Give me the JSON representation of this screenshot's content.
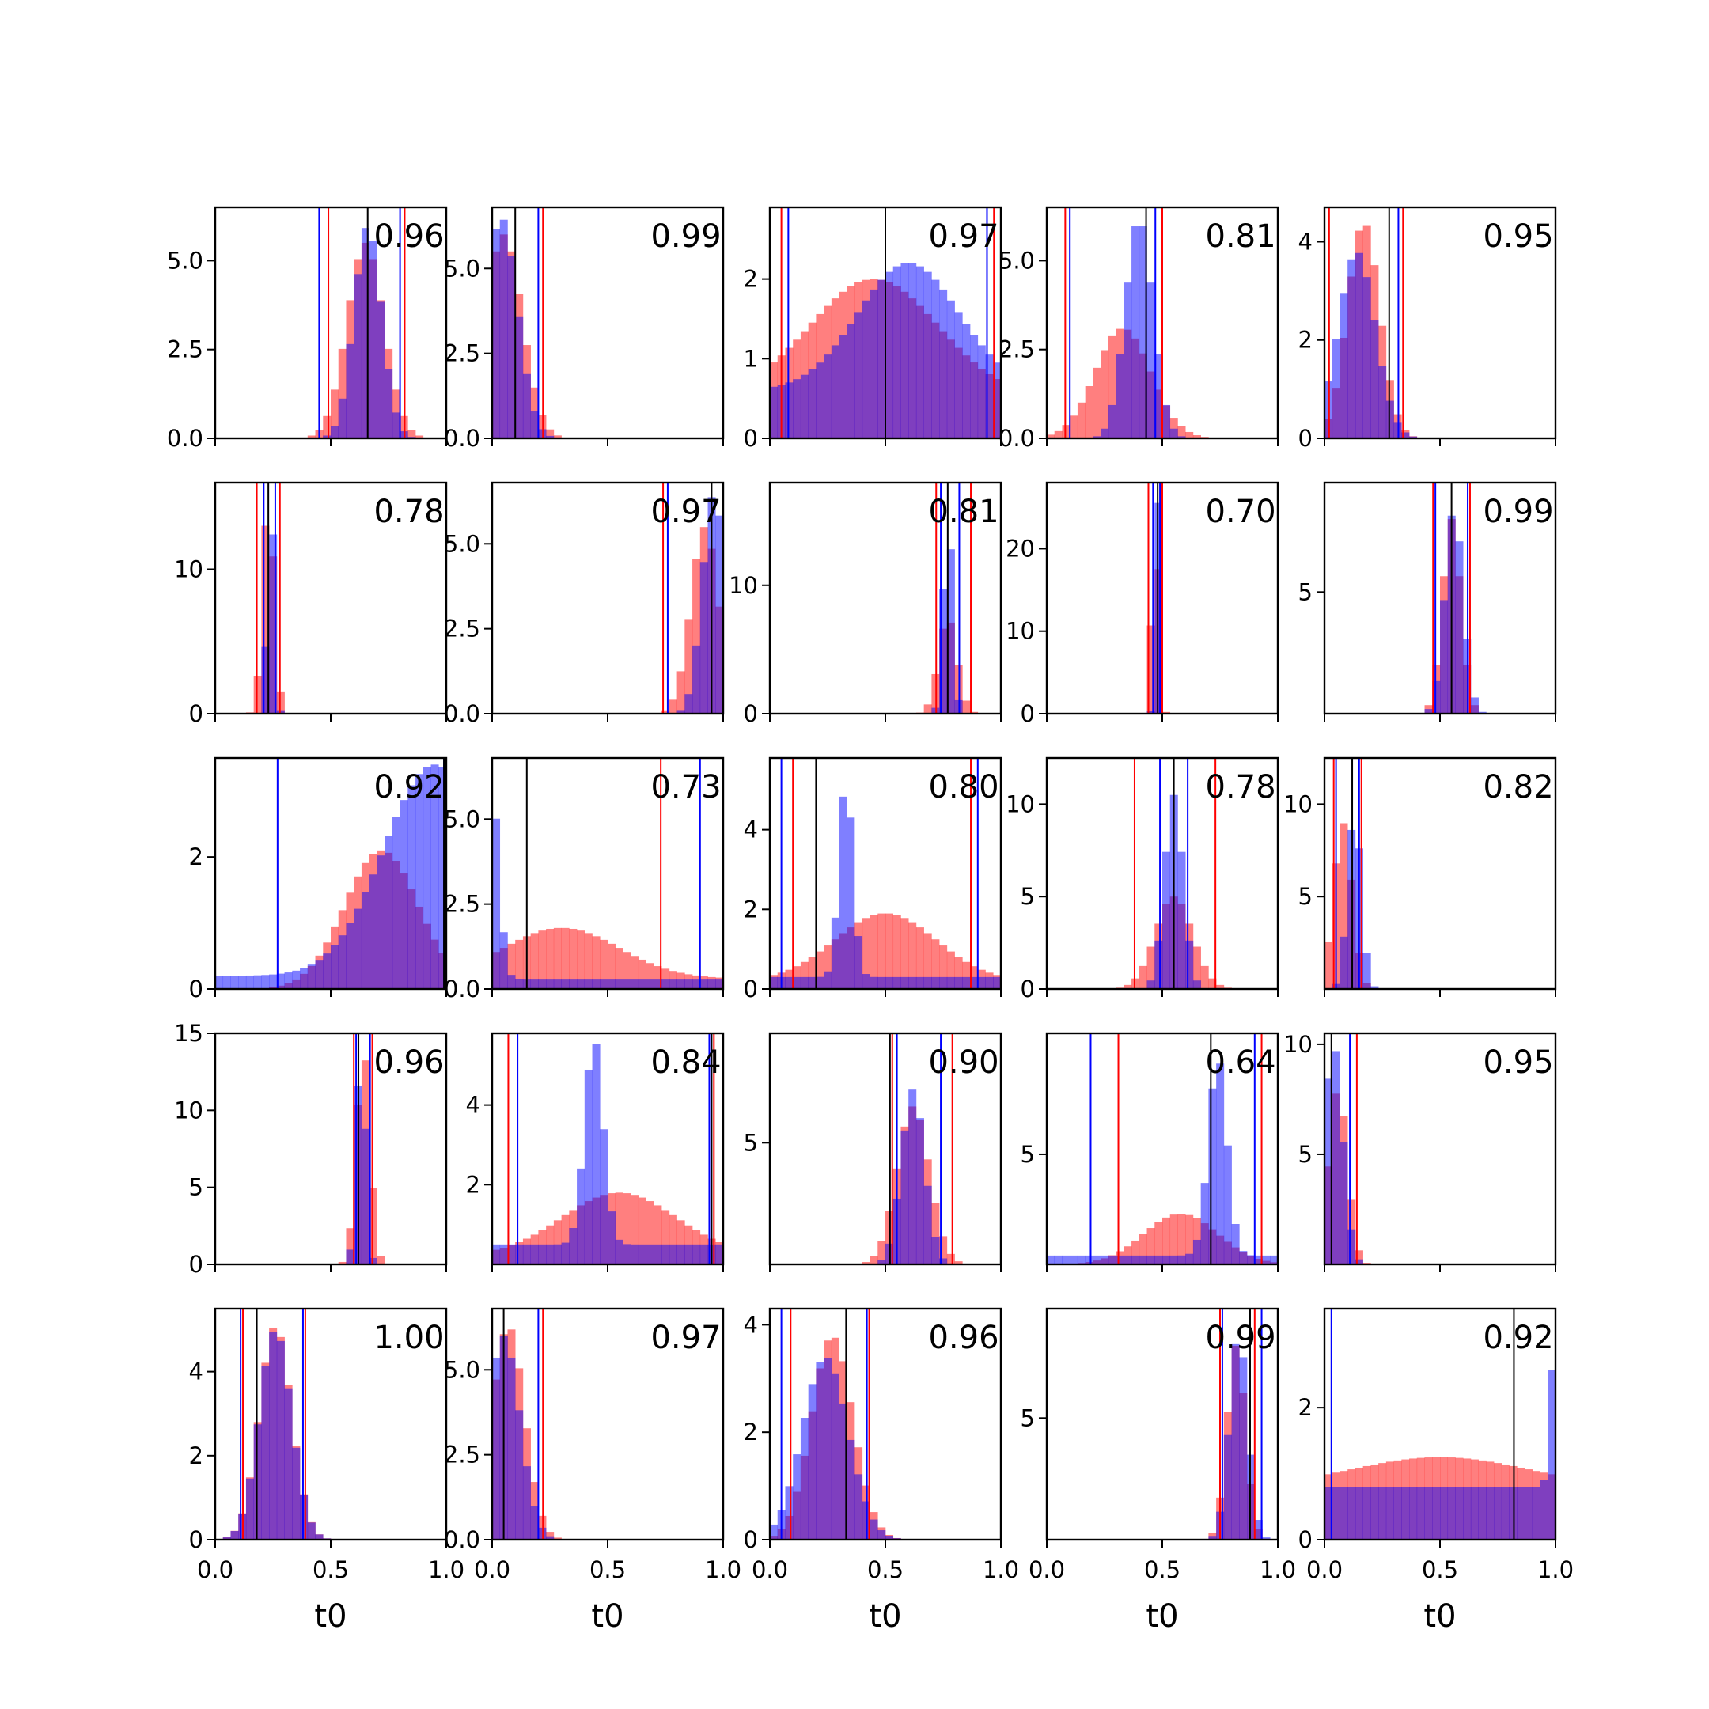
{
  "chart_data": {
    "type": "histogram-grid",
    "rows": 5,
    "cols": 5,
    "xlabel": "t0",
    "xlim": [
      0,
      1
    ],
    "x_ticks": [
      "0.0",
      "0.5",
      "1.0"
    ],
    "series_colors": {
      "red": "#ff0000",
      "blue": "#0000ff",
      "truth": "#000000"
    },
    "panels": [
      {
        "label": "0.96",
        "ymax": 6.5,
        "yticks": [
          "0.0",
          "2.5",
          "5.0"
        ],
        "ytick_vals": [
          0,
          2.5,
          5
        ],
        "red": {
          "mu": 0.65,
          "sd": 0.08,
          "peak": 5.5,
          "lines": [
            0.49,
            0.82
          ]
        },
        "blue": {
          "mu": 0.66,
          "sd": 0.06,
          "peak": 6.0,
          "lines": [
            0.45,
            0.8
          ],
          "uniform": 0.05
        },
        "truth": 0.66
      },
      {
        "label": "0.99",
        "ymax": 6.8,
        "yticks": [
          "0.0",
          "2.5",
          "5.0"
        ],
        "ytick_vals": [
          0,
          2.5,
          5
        ],
        "red": {
          "mu": 0.05,
          "sd": 0.08,
          "peak": 6.0,
          "lines": [
            0.0,
            0.22
          ]
        },
        "blue": {
          "mu": 0.04,
          "sd": 0.07,
          "peak": 6.5,
          "lines": [
            0.0,
            0.2
          ]
        },
        "truth": 0.1
      },
      {
        "label": "0.97",
        "ymax": 2.9,
        "yticks": [
          "0",
          "1",
          "2"
        ],
        "ytick_vals": [
          0,
          1,
          2
        ],
        "red": {
          "mu": 0.45,
          "sd": 0.28,
          "peak": 1.5,
          "base": 0.5,
          "lines": [
            0.05,
            0.97
          ]
        },
        "blue": {
          "mu": 0.6,
          "sd": 0.22,
          "peak": 1.6,
          "base": 0.6,
          "lines": [
            0.08,
            0.94
          ]
        },
        "truth": 0.5
      },
      {
        "label": "0.81",
        "ymax": 6.5,
        "yticks": [
          "0.0",
          "2.5",
          "5.0"
        ],
        "ytick_vals": [
          0,
          2.5,
          5
        ],
        "red": {
          "mu": 0.33,
          "sd": 0.12,
          "peak": 3.1,
          "lines": [
            0.08,
            0.5
          ]
        },
        "blue": {
          "mu": 0.4,
          "sd": 0.06,
          "peak": 6.2,
          "lines": [
            0.1,
            0.47
          ],
          "uniform": 0.15
        },
        "truth": 0.43
      },
      {
        "label": "0.95",
        "ymax": 4.7,
        "yticks": [
          "0",
          "2",
          "4"
        ],
        "ytick_vals": [
          0,
          2,
          4
        ],
        "red": {
          "mu": 0.17,
          "sd": 0.07,
          "peak": 4.4,
          "lines": [
            0.02,
            0.34
          ]
        },
        "blue": {
          "mu": 0.14,
          "sd": 0.08,
          "peak": 3.8,
          "lines": [
            0.0,
            0.32
          ]
        },
        "truth": 0.28
      },
      {
        "label": "0.78",
        "ymax": 16,
        "yticks": [
          "0",
          "10"
        ],
        "ytick_vals": [
          0,
          10
        ],
        "red": {
          "mu": 0.23,
          "sd": 0.025,
          "peak": 15.0,
          "lines": [
            0.18,
            0.28
          ]
        },
        "blue": {
          "mu": 0.24,
          "sd": 0.015,
          "peak": 15.5,
          "lines": [
            0.21,
            0.26
          ]
        },
        "truth": 0.23
      },
      {
        "label": "0.97",
        "ymax": 6.8,
        "yticks": [
          "0.0",
          "2.5",
          "5.0"
        ],
        "ytick_vals": [
          0,
          2.5,
          5
        ],
        "red": {
          "mu": 0.92,
          "sd": 0.06,
          "peak": 5.5,
          "lines": [
            0.74,
            1.0
          ]
        },
        "blue": {
          "mu": 0.96,
          "sd": 0.05,
          "peak": 6.5,
          "lines": [
            0.76,
            1.0
          ]
        },
        "truth": 0.95
      },
      {
        "label": "0.81",
        "ymax": 18,
        "yticks": [
          "0",
          "10"
        ],
        "ytick_vals": [
          0,
          10
        ],
        "red": {
          "mu": 0.77,
          "sd": 0.04,
          "peak": 7.5,
          "lines": [
            0.72,
            0.87
          ]
        },
        "blue": {
          "mu": 0.77,
          "sd": 0.02,
          "peak": 16.0,
          "lines": [
            0.74,
            0.82
          ]
        },
        "truth": 0.77
      },
      {
        "label": "0.70",
        "ymax": 28,
        "yticks": [
          "0",
          "10",
          "20"
        ],
        "ytick_vals": [
          0,
          10,
          20
        ],
        "red": {
          "mu": 0.47,
          "sd": 0.015,
          "peak": 26.0,
          "lines": [
            0.44,
            0.5
          ]
        },
        "blue": {
          "mu": 0.48,
          "sd": 0.01,
          "peak": 27.0,
          "lines": [
            0.46,
            0.49
          ]
        },
        "truth": 0.48
      },
      {
        "label": "0.99",
        "ymax": 9.5,
        "yticks": [
          "5"
        ],
        "ytick_vals": [
          5
        ],
        "red": {
          "mu": 0.55,
          "sd": 0.04,
          "peak": 8.0,
          "lines": [
            0.47,
            0.63
          ]
        },
        "blue": {
          "mu": 0.56,
          "sd": 0.04,
          "peak": 8.4,
          "lines": [
            0.48,
            0.62
          ]
        },
        "truth": 0.55
      },
      {
        "label": "0.92",
        "ymax": 3.5,
        "yticks": [
          "0",
          "2"
        ],
        "ytick_vals": [
          0,
          2
        ],
        "red": {
          "mu": 0.72,
          "sd": 0.16,
          "peak": 2.1,
          "lines": [
            0.0,
            1.0
          ]
        },
        "blue": {
          "mu": 0.95,
          "sd": 0.22,
          "peak": 3.2,
          "base": 0.2,
          "lines": [
            0.27,
            0.99
          ]
        },
        "truth": 0.99
      },
      {
        "label": "0.73",
        "ymax": 6.8,
        "yticks": [
          "0.0",
          "2.5",
          "5.0"
        ],
        "ytick_vals": [
          0,
          2.5,
          5
        ],
        "red": {
          "mu": 0.3,
          "sd": 0.25,
          "peak": 1.5,
          "base": 0.3,
          "lines": [
            0.0,
            0.73
          ]
        },
        "blue": {
          "mu": 0.0,
          "sd": 0.03,
          "peak": 5.5,
          "base": 0.3,
          "lines": [
            0.0,
            0.9
          ]
        },
        "truth": 0.15
      },
      {
        "label": "0.80",
        "ymax": 5.8,
        "yticks": [
          "0",
          "2",
          "4"
        ],
        "ytick_vals": [
          0,
          2,
          4
        ],
        "red": {
          "mu": 0.5,
          "sd": 0.22,
          "peak": 1.7,
          "base": 0.2,
          "lines": [
            0.1,
            0.87
          ]
        },
        "blue": {
          "mu": 0.33,
          "sd": 0.03,
          "peak": 5.0,
          "base": 0.3,
          "lines": [
            0.05,
            0.9
          ]
        },
        "truth": 0.2
      },
      {
        "label": "0.78",
        "ymax": 12.5,
        "yticks": [
          "0",
          "5",
          "10"
        ],
        "ytick_vals": [
          0,
          5,
          10
        ],
        "red": {
          "mu": 0.55,
          "sd": 0.08,
          "peak": 5.0,
          "lines": [
            0.38,
            0.73
          ]
        },
        "blue": {
          "mu": 0.55,
          "sd": 0.04,
          "peak": 10.5,
          "lines": [
            0.49,
            0.61
          ]
        },
        "truth": 0.55
      },
      {
        "label": "0.82",
        "ymax": 12.5,
        "yticks": [
          "5",
          "10"
        ],
        "ytick_vals": [
          5,
          10
        ],
        "red": {
          "mu": 0.08,
          "sd": 0.04,
          "peak": 9.0,
          "lines": [
            0.04,
            0.16
          ]
        },
        "blue": {
          "mu": 0.13,
          "sd": 0.03,
          "peak": 9.5,
          "lines": [
            0.05,
            0.15
          ]
        },
        "truth": 0.12
      },
      {
        "label": "0.96",
        "ymax": 15,
        "yticks": [
          "0",
          "5",
          "10",
          "15"
        ],
        "ytick_vals": [
          0,
          5,
          10,
          15
        ],
        "red": {
          "mu": 0.64,
          "sd": 0.03,
          "peak": 14.0,
          "lines": [
            0.6,
            0.68
          ]
        },
        "blue": {
          "mu": 0.63,
          "sd": 0.02,
          "peak": 14.5,
          "lines": [
            0.61,
            0.67
          ]
        },
        "truth": 0.62
      },
      {
        "label": "0.84",
        "ymax": 5.8,
        "yticks": [
          "2",
          "4"
        ],
        "ytick_vals": [
          2,
          4
        ],
        "red": {
          "mu": 0.55,
          "sd": 0.25,
          "peak": 1.6,
          "base": 0.2,
          "lines": [
            0.07,
            0.96
          ]
        },
        "blue": {
          "mu": 0.44,
          "sd": 0.04,
          "peak": 5.2,
          "base": 0.5,
          "lines": [
            0.11,
            0.94
          ]
        },
        "truth": 0.95
      },
      {
        "label": "0.90",
        "ymax": 9.5,
        "yticks": [
          "5"
        ],
        "ytick_vals": [
          5
        ],
        "red": {
          "mu": 0.62,
          "sd": 0.07,
          "peak": 6.5,
          "lines": [
            0.53,
            0.79
          ]
        },
        "blue": {
          "mu": 0.62,
          "sd": 0.05,
          "peak": 7.2,
          "lines": [
            0.55,
            0.74
          ]
        },
        "truth": 0.52
      },
      {
        "label": "0.64",
        "ymax": 10.5,
        "yticks": [
          "5"
        ],
        "ytick_vals": [
          5
        ],
        "red": {
          "mu": 0.58,
          "sd": 0.16,
          "peak": 2.3,
          "lines": [
            0.31,
            0.93
          ]
        },
        "blue": {
          "mu": 0.74,
          "sd": 0.04,
          "peak": 9.0,
          "base": 0.4,
          "lines": [
            0.19,
            0.9
          ]
        },
        "truth": 0.71
      },
      {
        "label": "0.95",
        "ymax": 10.5,
        "yticks": [
          "5",
          "10"
        ],
        "ytick_vals": [
          5,
          10
        ],
        "red": {
          "mu": 0.06,
          "sd": 0.04,
          "peak": 8.0,
          "lines": [
            0.0,
            0.14
          ]
        },
        "blue": {
          "mu": 0.04,
          "sd": 0.04,
          "peak": 10.0,
          "lines": [
            0.0,
            0.11
          ]
        },
        "truth": 0.03
      },
      {
        "label": "1.00",
        "ymax": 5.5,
        "yticks": [
          "0",
          "2",
          "4"
        ],
        "ytick_vals": [
          0,
          2,
          4
        ],
        "red": {
          "mu": 0.26,
          "sd": 0.07,
          "peak": 5.1,
          "lines": [
            0.12,
            0.39
          ]
        },
        "blue": {
          "mu": 0.26,
          "sd": 0.07,
          "peak": 5.0,
          "lines": [
            0.11,
            0.38
          ]
        },
        "truth": 0.18
      },
      {
        "label": "0.97",
        "ymax": 6.8,
        "yticks": [
          "0.0",
          "2.5",
          "5.0"
        ],
        "ytick_vals": [
          0,
          2.5,
          5
        ],
        "red": {
          "mu": 0.07,
          "sd": 0.07,
          "peak": 6.3,
          "lines": [
            0.0,
            0.22
          ]
        },
        "blue": {
          "mu": 0.05,
          "sd": 0.07,
          "peak": 6.0,
          "lines": [
            0.0,
            0.2
          ]
        },
        "truth": 0.05
      },
      {
        "label": "0.96",
        "ymax": 4.3,
        "yticks": [
          "0",
          "2",
          "4"
        ],
        "ytick_vals": [
          0,
          2,
          4
        ],
        "red": {
          "mu": 0.27,
          "sd": 0.09,
          "peak": 3.8,
          "lines": [
            0.09,
            0.43
          ]
        },
        "blue": {
          "mu": 0.24,
          "sd": 0.1,
          "peak": 3.4,
          "lines": [
            0.05,
            0.42
          ]
        },
        "truth": 0.33
      },
      {
        "label": "0.99",
        "ymax": 9.5,
        "yticks": [
          "5"
        ],
        "ytick_vals": [
          5
        ],
        "red": {
          "mu": 0.82,
          "sd": 0.04,
          "peak": 8.0,
          "lines": [
            0.75,
            0.9
          ]
        },
        "blue": {
          "mu": 0.83,
          "sd": 0.04,
          "peak": 8.5,
          "lines": [
            0.76,
            0.93
          ]
        },
        "truth": 0.88
      },
      {
        "label": "0.92",
        "ymax": 3.5,
        "yticks": [
          "0",
          "2"
        ],
        "ytick_vals": [
          0,
          2
        ],
        "red": {
          "mu": 0.5,
          "sd": 0.4,
          "peak": 0.5,
          "base": 0.75,
          "lines": [
            0.0,
            1.0
          ]
        },
        "blue": {
          "mu": 1.0,
          "sd": 0.02,
          "peak": 2.5,
          "base": 0.8,
          "lines": [
            0.03,
            1.0
          ]
        },
        "truth": 0.82
      }
    ]
  }
}
